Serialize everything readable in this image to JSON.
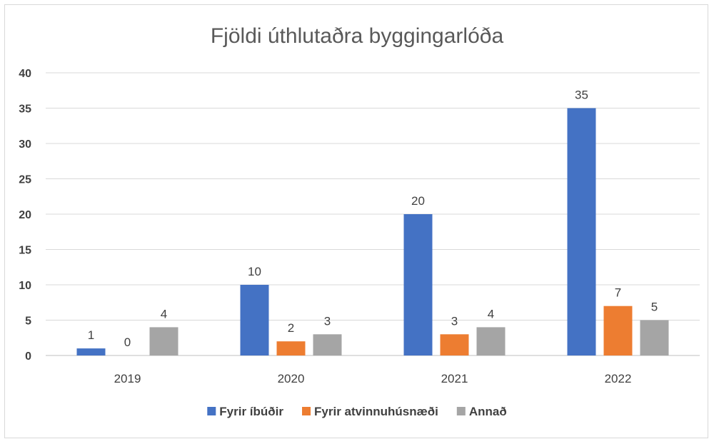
{
  "chart_data": {
    "type": "bar",
    "title": "Fjöldi úthlutaðra byggingarlóða",
    "categories": [
      "2019",
      "2020",
      "2021",
      "2022"
    ],
    "series": [
      {
        "name": "Fyrir íbúðir",
        "values": [
          1,
          10,
          20,
          35
        ],
        "color": "#4472c4"
      },
      {
        "name": "Fyrir atvinnuhúsnæði",
        "values": [
          0,
          2,
          3,
          7
        ],
        "color": "#ed7d31"
      },
      {
        "name": "Annað",
        "values": [
          4,
          3,
          4,
          5
        ],
        "color": "#a5a5a5"
      }
    ],
    "ylim": [
      0,
      40
    ],
    "yticks": [
      0,
      5,
      10,
      15,
      20,
      25,
      30,
      35,
      40
    ],
    "grid": true,
    "legend_position": "bottom",
    "data_labels": true
  }
}
